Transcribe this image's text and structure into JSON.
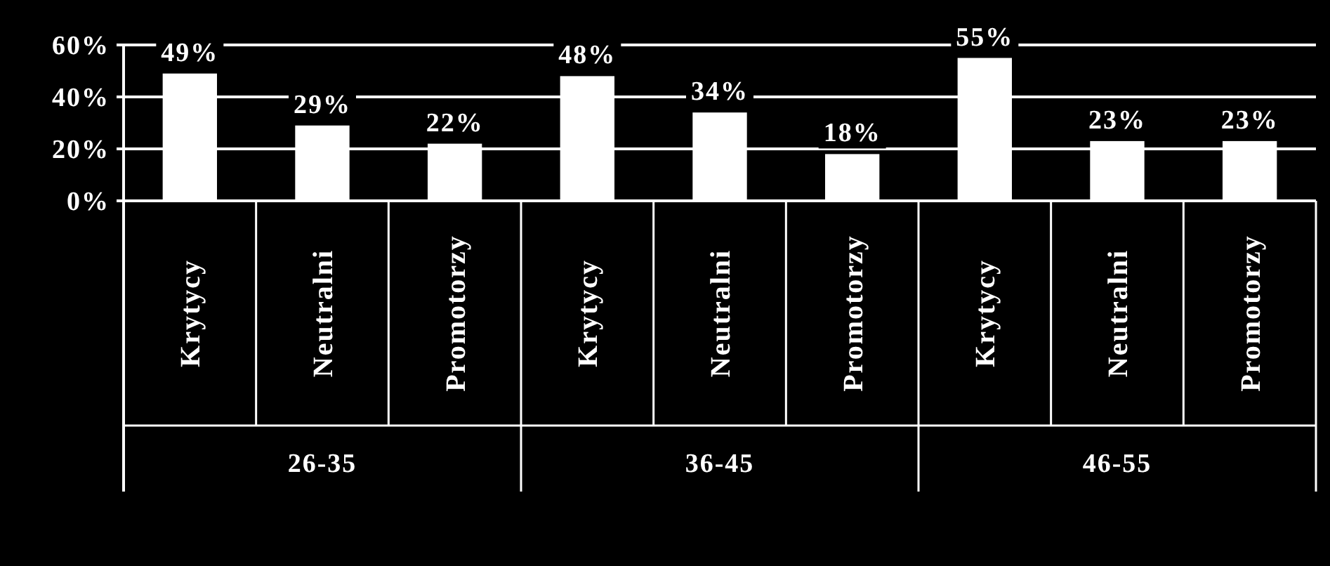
{
  "chart_data": {
    "type": "bar",
    "categories": [
      "Krytycy",
      "Neutralni",
      "Promotorzy",
      "Krytycy",
      "Neutralni",
      "Promotorzy",
      "Krytycy",
      "Neutralni",
      "Promotorzy"
    ],
    "values": [
      49,
      29,
      22,
      48,
      34,
      18,
      55,
      23,
      23
    ],
    "value_labels": [
      "49%",
      "29%",
      "22%",
      "48%",
      "34%",
      "18%",
      "55%",
      "23%",
      "23%"
    ],
    "color": "#ffffff",
    "ylim": [
      0,
      60
    ],
    "yticks": [
      {
        "value": 0,
        "label": "0%"
      },
      {
        "value": 20,
        "label": "20%"
      },
      {
        "value": 40,
        "label": "40%"
      },
      {
        "value": 60,
        "label": "60%"
      }
    ],
    "grid": "y",
    "annotations": [
      "26-35",
      "36-45",
      "46-55"
    ]
  }
}
